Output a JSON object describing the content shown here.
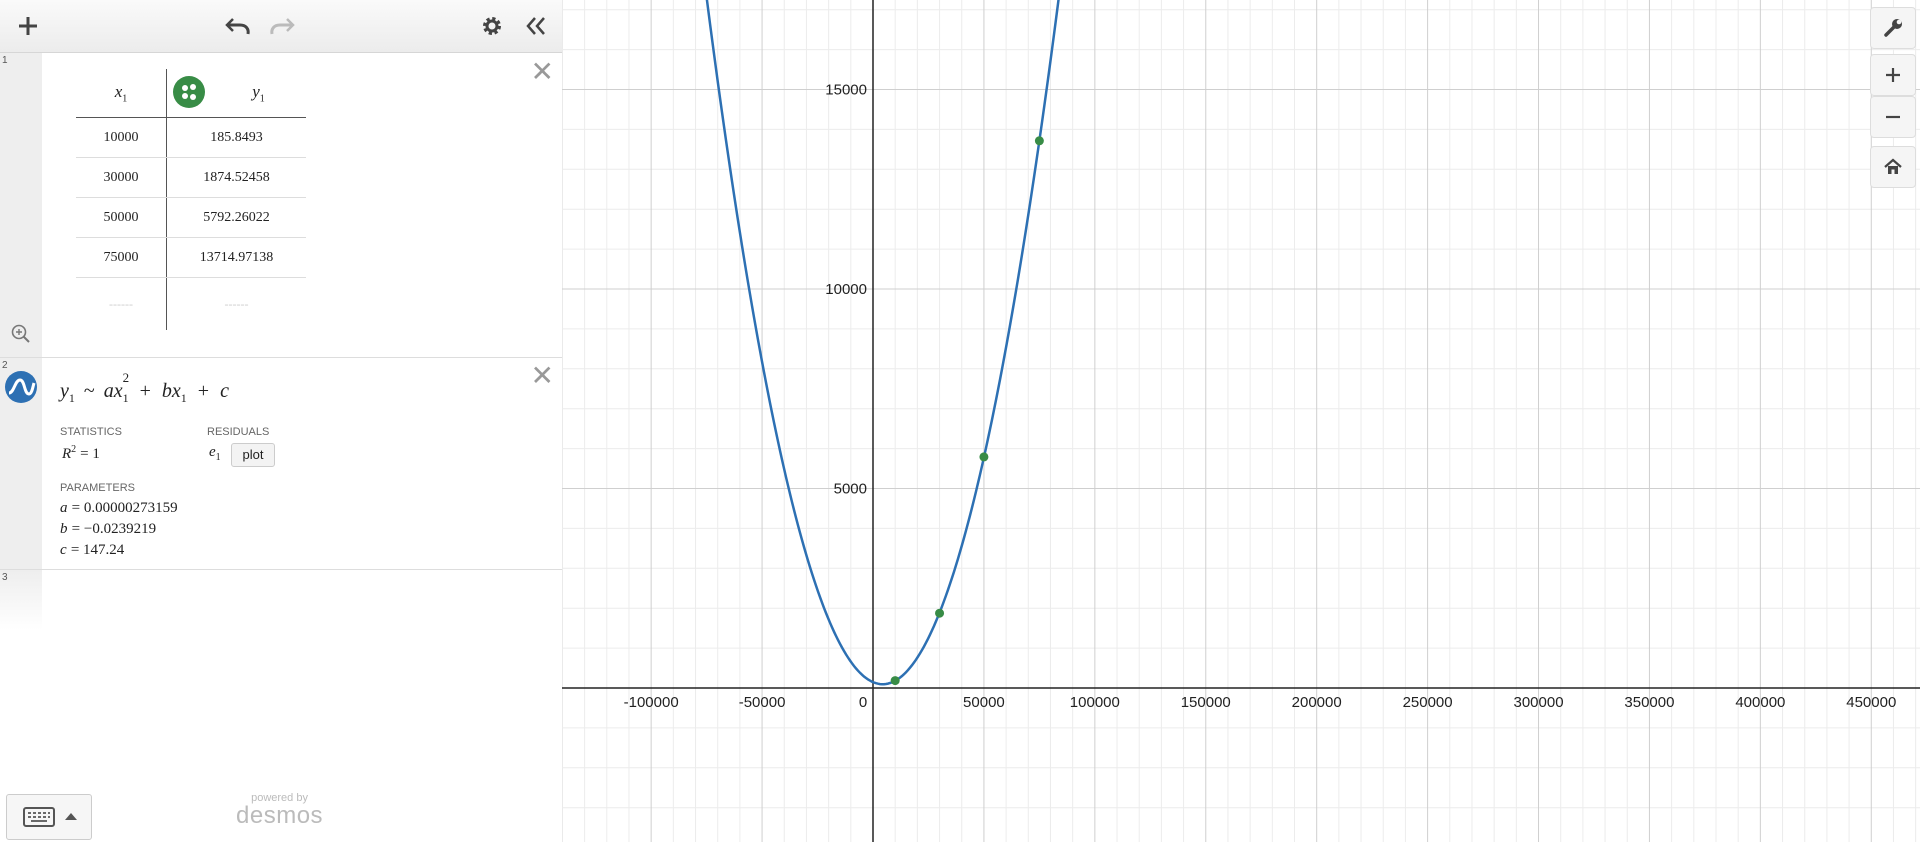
{
  "toolbar": {
    "icons": [
      "plus-icon",
      "undo-icon",
      "redo-icon",
      "gear-icon",
      "collapse-icon"
    ]
  },
  "expr1": {
    "index": "1",
    "table": {
      "header": {
        "x": "x",
        "x_sub": "1",
        "y": "y",
        "y_sub": "1"
      },
      "rows": [
        {
          "x": "10000",
          "y": "185.8493"
        },
        {
          "x": "30000",
          "y": "1874.52458"
        },
        {
          "x": "50000",
          "y": "5792.26022"
        },
        {
          "x": "75000",
          "y": "13714.97138"
        }
      ],
      "placeholder": {
        "x": "------",
        "y": "------"
      }
    },
    "point_color": "#388c46"
  },
  "expr2": {
    "index": "2",
    "formula": {
      "y": "y",
      "sub": "1",
      "tilde": "~",
      "a": "a",
      "x": "x",
      "sq": "2",
      "plus1": "+",
      "b": "b",
      "plus2": "+",
      "c": "c"
    },
    "statistics_label": "STATISTICS",
    "r2": {
      "r": "R",
      "sup": "2",
      "eq": "= 1"
    },
    "residuals_label": "RESIDUALS",
    "residual_var": "e",
    "residual_sub": "1",
    "plot_button": "plot",
    "parameters_label": "PARAMETERS",
    "params": [
      {
        "name": "a",
        "value": "= 0.00000273159"
      },
      {
        "name": "b",
        "value": "= −0.0239219"
      },
      {
        "name": "c",
        "value": "= 147.24"
      }
    ]
  },
  "expr3": {
    "index": "3"
  },
  "branding": {
    "line1": "powered by",
    "line2": "desmos"
  },
  "graph": {
    "x_ticks": [
      "-100000",
      "-50000",
      "0",
      "50000",
      "100000",
      "150000",
      "200000",
      "250000",
      "300000",
      "350000",
      "400000",
      "450000"
    ],
    "y_ticks": [
      "5000",
      "10000",
      "15000"
    ],
    "curve_color": "#2d70b3",
    "point_color": "#388c46",
    "fit": {
      "a": 2.73159e-06,
      "b": -0.0239219,
      "c": 147.24
    },
    "x_range": [
      -140000,
      470000
    ],
    "y_range": [
      -3800,
      17300
    ]
  }
}
